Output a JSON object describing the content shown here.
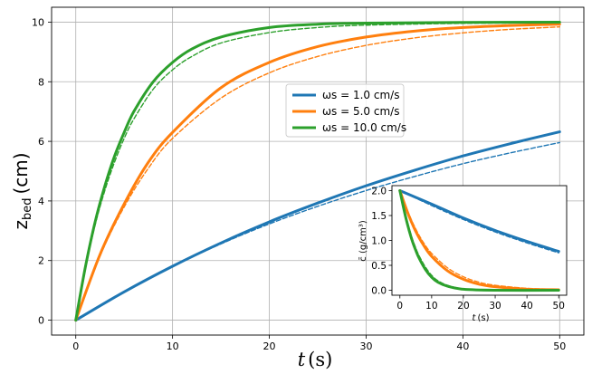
{
  "chart_data": [
    {
      "type": "line",
      "title": "",
      "xlabel_var": "t",
      "xlabel_unit": "(s)",
      "ylabel_var": "z",
      "ylabel_sub": "bed",
      "ylabel_unit": "(cm)",
      "xlim": [
        -2.5,
        52.5
      ],
      "ylim": [
        -0.5,
        10.5
      ],
      "xticks": [
        0,
        10,
        20,
        30,
        40,
        50
      ],
      "yticks": [
        0,
        2,
        4,
        6,
        8,
        10
      ],
      "grid": true,
      "legend_position": "center-right",
      "legend": [
        {
          "label": "ωs = 1.0 cm/s",
          "color": "#1f77b4"
        },
        {
          "label": "ωs = 5.0 cm/s",
          "color": "#ff7f0e"
        },
        {
          "label": "ωs = 10.0 cm/s",
          "color": "#2ca02c"
        }
      ],
      "series": [
        {
          "name": "ωs = 1.0 cm/s",
          "style": "solid",
          "color": "#1f77b4",
          "x": [
            0,
            5,
            10,
            15,
            20,
            25,
            30,
            35,
            40,
            45,
            50
          ],
          "y": [
            0,
            0.95,
            1.81,
            2.59,
            3.3,
            3.93,
            4.51,
            5.03,
            5.51,
            5.93,
            6.32
          ]
        },
        {
          "name": "ωs = 1.0 cm/s (dashed)",
          "style": "dashed",
          "color": "#1f77b4",
          "x": [
            0,
            5,
            10,
            15,
            20,
            25,
            30,
            35,
            40,
            45,
            50
          ],
          "y": [
            0,
            0.95,
            1.8,
            2.56,
            3.23,
            3.82,
            4.35,
            4.82,
            5.25,
            5.62,
            5.96
          ]
        },
        {
          "name": "ωs = 5.0 cm/s",
          "style": "solid",
          "color": "#ff7f0e",
          "x": [
            0,
            2.5,
            5,
            7.5,
            10,
            15,
            20,
            25,
            30,
            35,
            40,
            45,
            50
          ],
          "y": [
            0,
            2.2,
            3.9,
            5.3,
            6.3,
            7.8,
            8.65,
            9.18,
            9.5,
            9.7,
            9.82,
            9.89,
            9.93
          ]
        },
        {
          "name": "ωs = 5.0 cm/s (dashed)",
          "style": "dashed",
          "color": "#ff7f0e",
          "x": [
            0,
            2.5,
            5,
            7.5,
            10,
            15,
            20,
            25,
            30,
            35,
            40,
            45,
            50
          ],
          "y": [
            0,
            2.15,
            3.8,
            5.1,
            6.1,
            7.45,
            8.3,
            8.85,
            9.22,
            9.47,
            9.64,
            9.76,
            9.84
          ]
        },
        {
          "name": "ωs = 10.0 cm/s",
          "style": "solid",
          "color": "#2ca02c",
          "x": [
            0,
            1,
            2,
            3,
            4,
            5,
            6,
            8,
            10,
            12,
            15,
            20,
            25,
            30,
            40,
            50
          ],
          "y": [
            0,
            1.8,
            3.3,
            4.5,
            5.5,
            6.3,
            7.0,
            8.0,
            8.65,
            9.1,
            9.5,
            9.82,
            9.93,
            9.97,
            9.99,
            10.0
          ]
        },
        {
          "name": "ωs = 10.0 cm/s (dashed)",
          "style": "dashed",
          "color": "#2ca02c",
          "x": [
            0,
            1,
            2,
            3,
            4,
            5,
            6,
            8,
            10,
            12,
            15,
            20,
            25,
            30,
            40,
            50
          ],
          "y": [
            0,
            1.75,
            3.2,
            4.35,
            5.3,
            6.1,
            6.75,
            7.75,
            8.4,
            8.85,
            9.3,
            9.65,
            9.82,
            9.9,
            9.96,
            9.98
          ]
        }
      ]
    },
    {
      "type": "line",
      "title": "",
      "xlabel_var": "t",
      "xlabel_unit": "(s)",
      "ylabel": "c̄ (g/cm³)",
      "xlim": [
        -2.5,
        52.5
      ],
      "ylim": [
        -0.1,
        2.1
      ],
      "xticks": [
        0,
        10,
        20,
        30,
        40,
        50
      ],
      "yticks": [
        0.0,
        0.5,
        1.0,
        1.5,
        2.0
      ],
      "ytick_labels": [
        "0.0",
        "0.5",
        "1.0",
        "1.5",
        "2.0"
      ],
      "grid": false,
      "series": [
        {
          "name": "ωs = 1.0 cm/s",
          "style": "solid",
          "color": "#1f77b4",
          "x": [
            0,
            10,
            20,
            30,
            40,
            50
          ],
          "y": [
            2.0,
            1.73,
            1.45,
            1.2,
            0.98,
            0.78
          ]
        },
        {
          "name": "ωs = 1.0 cm/s (dashed)",
          "style": "dashed",
          "color": "#1f77b4",
          "x": [
            0,
            10,
            20,
            30,
            40,
            50
          ],
          "y": [
            2.0,
            1.7,
            1.42,
            1.17,
            0.95,
            0.75
          ]
        },
        {
          "name": "ωs = 5.0 cm/s",
          "style": "solid",
          "color": "#ff7f0e",
          "x": [
            0,
            2.5,
            5,
            7.5,
            10,
            15,
            20,
            25,
            30,
            40,
            50
          ],
          "y": [
            2.0,
            1.55,
            1.18,
            0.9,
            0.68,
            0.39,
            0.22,
            0.12,
            0.07,
            0.02,
            0.01
          ]
        },
        {
          "name": "ωs = 5.0 cm/s (dashed)",
          "style": "dashed",
          "color": "#ff7f0e",
          "x": [
            0,
            2.5,
            5,
            7.5,
            10,
            15,
            20,
            25,
            30,
            40,
            50
          ],
          "y": [
            2.0,
            1.58,
            1.23,
            0.95,
            0.74,
            0.45,
            0.27,
            0.16,
            0.1,
            0.04,
            0.02
          ]
        },
        {
          "name": "ωs = 10.0 cm/s",
          "style": "solid",
          "color": "#2ca02c",
          "x": [
            0,
            1,
            2,
            3,
            4,
            5,
            6,
            8,
            10,
            12,
            15,
            20,
            30,
            50
          ],
          "y": [
            2.0,
            1.7,
            1.42,
            1.18,
            0.97,
            0.8,
            0.65,
            0.42,
            0.26,
            0.16,
            0.08,
            0.02,
            0.0,
            0.0
          ]
        },
        {
          "name": "ωs = 10.0 cm/s (dashed)",
          "style": "dashed",
          "color": "#2ca02c",
          "x": [
            0,
            1,
            2,
            3,
            4,
            5,
            6,
            8,
            10,
            12,
            15,
            20,
            30,
            50
          ],
          "y": [
            2.0,
            1.72,
            1.46,
            1.23,
            1.02,
            0.85,
            0.7,
            0.47,
            0.3,
            0.19,
            0.1,
            0.03,
            0.0,
            0.0
          ]
        }
      ]
    }
  ]
}
